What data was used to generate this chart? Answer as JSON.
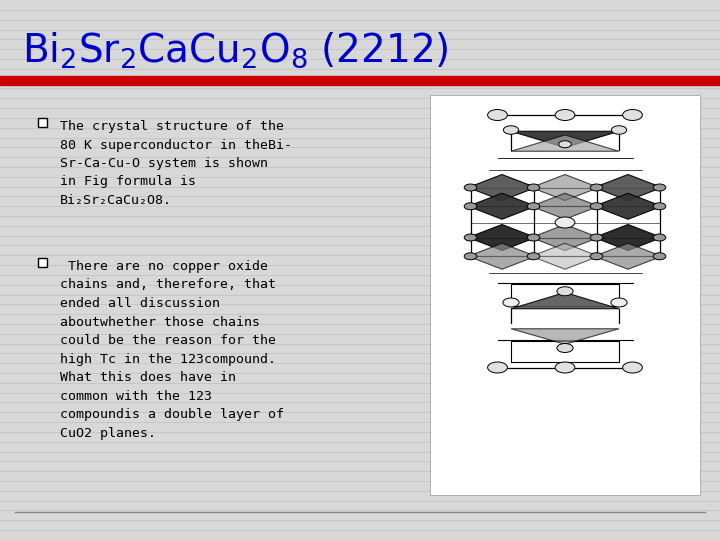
{
  "bg_color": "#d8d8d8",
  "title_color": "#0000cc",
  "title_fontsize": 28,
  "red_bar_color": "#cc0000",
  "bottom_line_color": "#888888",
  "bullet_color_face": "#ffffff",
  "bullet_color_edge": "#000000",
  "text1": "The crystal structure of the\n80 K superconductor in theBi-\nSr-Ca-Cu-O system is shown\nin Fig formula is\nBi₂Sr₂CaCu₂O8.",
  "text2": " There are no copper oxide\nchains and, therefore, that\nended all discussion\naboutwhether those chains\ncould be the reason for the\nhigh Tc in the 123compound.\nWhat this does have in\ncommon with the 123\ncompoundis a double layer of\nCuO2 planes.",
  "text_fontsize": 9.5,
  "text_color": "#000000",
  "font_family": "monospace",
  "n_hlines": 54,
  "hline_color": "#c0c0c0",
  "hline_lw": 0.5
}
